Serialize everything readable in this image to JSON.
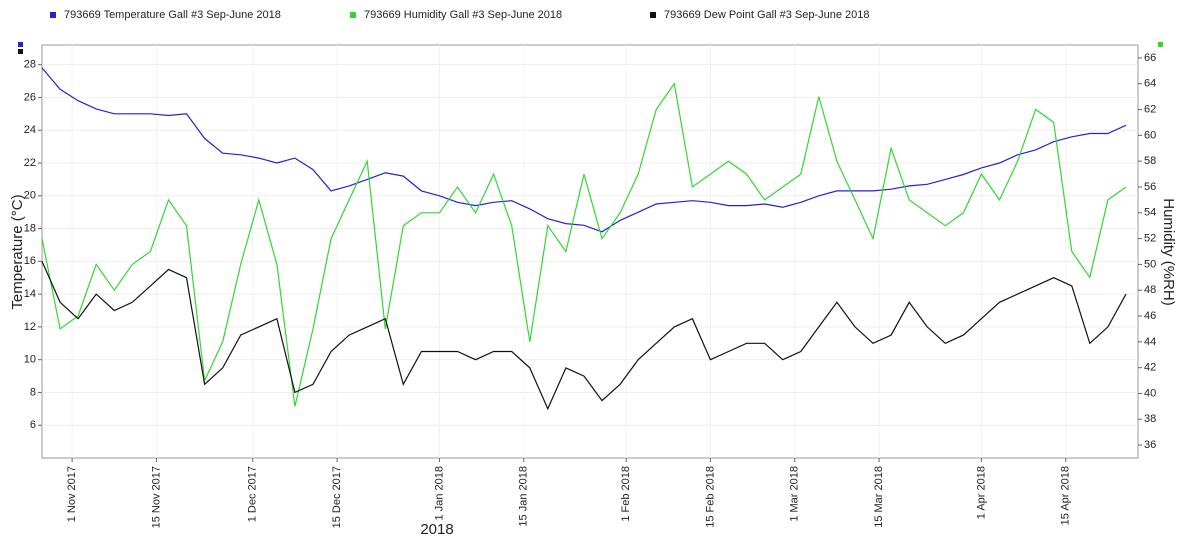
{
  "chart_data": {
    "type": "line",
    "x_label": "2018",
    "y_label": "Temperature (°C)",
    "y2_label": "Humidity (%RH)",
    "grid": true,
    "legend": "top",
    "xlim": [
      "2017-10-27",
      "2018-04-27"
    ],
    "xticks": [
      {
        "value": "2017-11-01",
        "label": "1 Nov 2017"
      },
      {
        "value": "2017-11-15",
        "label": "15 Nov 2017"
      },
      {
        "value": "2017-12-01",
        "label": "1 Dec 2017"
      },
      {
        "value": "2017-12-15",
        "label": "15 Dec 2017"
      },
      {
        "value": "2018-01-01",
        "label": "1 Jan 2018"
      },
      {
        "value": "2018-01-15",
        "label": "15 Jan 2018"
      },
      {
        "value": "2018-02-01",
        "label": "1 Feb 2018"
      },
      {
        "value": "2018-02-15",
        "label": "15 Feb 2018"
      },
      {
        "value": "2018-03-01",
        "label": "1 Mar 2018"
      },
      {
        "value": "2018-03-15",
        "label": "15 Mar 2018"
      },
      {
        "value": "2018-04-01",
        "label": "1 Apr 2018"
      },
      {
        "value": "2018-04-15",
        "label": "15 Apr 2018"
      }
    ],
    "ylim": [
      4,
      29.2
    ],
    "yticks": [
      6,
      8,
      10,
      12,
      14,
      16,
      18,
      20,
      22,
      24,
      26,
      28
    ],
    "y2lim": [
      35,
      67
    ],
    "y2ticks": [
      36,
      38,
      40,
      42,
      44,
      46,
      48,
      50,
      52,
      54,
      56,
      58,
      60,
      62,
      64,
      66
    ],
    "x": [
      "2017-10-27",
      "2017-10-30",
      "2017-11-02",
      "2017-11-05",
      "2017-11-08",
      "2017-11-11",
      "2017-11-14",
      "2017-11-17",
      "2017-11-20",
      "2017-11-23",
      "2017-11-26",
      "2017-11-29",
      "2017-12-02",
      "2017-12-05",
      "2017-12-08",
      "2017-12-11",
      "2017-12-14",
      "2017-12-17",
      "2017-12-20",
      "2017-12-23",
      "2017-12-26",
      "2017-12-29",
      "2018-01-01",
      "2018-01-04",
      "2018-01-07",
      "2018-01-10",
      "2018-01-13",
      "2018-01-16",
      "2018-01-19",
      "2018-01-22",
      "2018-01-25",
      "2018-01-28",
      "2018-01-31",
      "2018-02-03",
      "2018-02-06",
      "2018-02-09",
      "2018-02-12",
      "2018-02-15",
      "2018-02-18",
      "2018-02-21",
      "2018-02-24",
      "2018-02-27",
      "2018-03-02",
      "2018-03-05",
      "2018-03-08",
      "2018-03-11",
      "2018-03-14",
      "2018-03-17",
      "2018-03-20",
      "2018-03-23",
      "2018-03-26",
      "2018-03-29",
      "2018-04-01",
      "2018-04-04",
      "2018-04-07",
      "2018-04-10",
      "2018-04-13",
      "2018-04-16",
      "2018-04-19",
      "2018-04-22",
      "2018-04-25"
    ],
    "series": [
      {
        "name": "793669 Temperature Gall #3 Sep-June 2018",
        "color": "#2323d0",
        "axis": "y",
        "values": [
          27.8,
          26.5,
          25.8,
          25.3,
          25.0,
          25.0,
          25.0,
          24.9,
          25.0,
          23.5,
          22.6,
          22.5,
          22.3,
          22.0,
          22.3,
          21.6,
          20.3,
          20.6,
          21.0,
          21.4,
          21.2,
          20.3,
          20.0,
          19.6,
          19.4,
          19.6,
          19.7,
          19.2,
          18.6,
          18.3,
          18.2,
          17.8,
          18.5,
          19.0,
          19.5,
          19.6,
          19.7,
          19.6,
          19.4,
          19.4,
          19.5,
          19.3,
          19.6,
          20.0,
          20.3,
          20.3,
          20.3,
          20.4,
          20.6,
          20.7,
          21.0,
          21.3,
          21.7,
          22.0,
          22.5,
          22.8,
          23.3,
          23.6,
          23.8,
          23.8,
          24.3
        ]
      },
      {
        "name": "793669 Humidity Gall #3 Sep-June 2018",
        "color": "#33d633",
        "axis": "y2",
        "values": [
          52,
          45,
          46,
          50,
          48,
          50,
          51,
          55,
          53,
          41,
          44,
          50,
          55,
          50,
          39,
          45,
          52,
          55,
          58,
          45,
          53,
          54,
          54,
          56,
          54,
          57,
          53,
          44,
          53,
          51,
          57,
          52,
          54,
          57,
          62,
          64,
          56,
          57,
          58,
          57,
          55,
          56,
          57,
          63,
          58,
          55,
          52,
          59,
          55,
          54,
          53,
          54,
          57,
          55,
          58,
          62,
          61,
          51,
          49,
          55,
          56
        ]
      },
      {
        "name": "793669 Dew Point Gall #3 Sep-June 2018",
        "color": "#111111",
        "axis": "y",
        "values": [
          16,
          13.5,
          12.5,
          14,
          13,
          13.5,
          14.5,
          15.5,
          15,
          8.5,
          9.5,
          11.5,
          12,
          12.5,
          8,
          8.5,
          10.5,
          11.5,
          12,
          12.5,
          8.5,
          10.5,
          10.5,
          10.5,
          10,
          10.5,
          10.5,
          9.5,
          7,
          9.5,
          9,
          7.5,
          8.5,
          10,
          11,
          12,
          12.5,
          10,
          10.5,
          11,
          11,
          10,
          10.5,
          12,
          13.5,
          12,
          11,
          11.5,
          13.5,
          12,
          11,
          11.5,
          12.5,
          13.5,
          14,
          14.5,
          15,
          14.5,
          11,
          12,
          14
        ]
      }
    ]
  }
}
